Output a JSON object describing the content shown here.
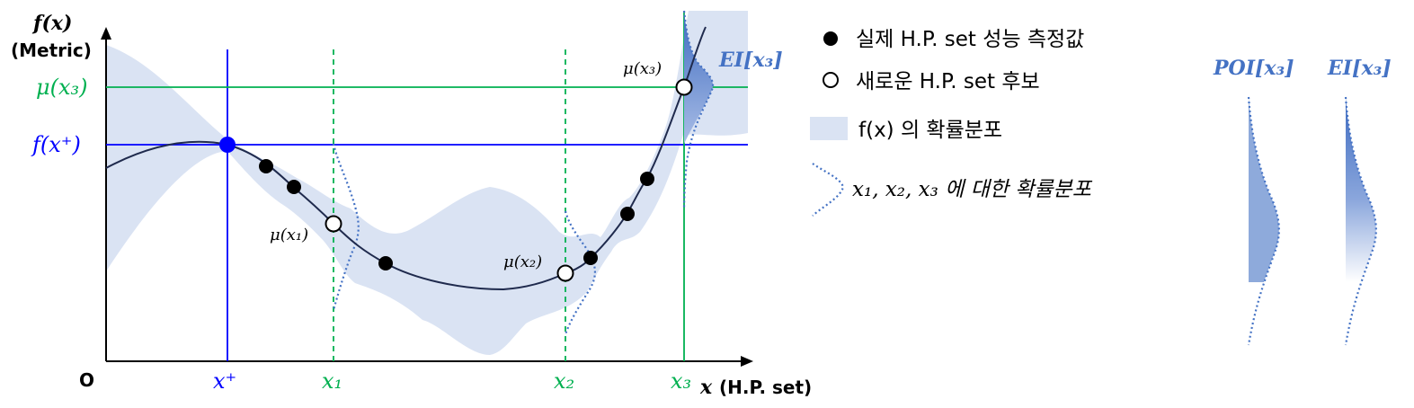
{
  "axes": {
    "y_label": "f(x)",
    "y_sublabel": "(Metric)",
    "origin": "O",
    "x_label": "x",
    "x_unit": "(H.P. set)"
  },
  "ticks": {
    "x_plus": "x⁺",
    "x1": "x₁",
    "x2": "x₂",
    "x3": "x₃",
    "mu_x3": "μ(x₃)",
    "f_x_plus": "f(x⁺)"
  },
  "point_labels": {
    "mu_x1": "μ(x₁)",
    "mu_x2": "μ(x₂)",
    "mu_x3": "μ(x₃)",
    "ei_x3": "EI[x₃]"
  },
  "legend": {
    "observed": "실제 H.P. set 성능 측정값",
    "candidate": "새로운 H.P. set 후보",
    "band": "f(x) 의 확률분포",
    "distributions": "x₁, x₂, x₃ 에 대한 확률분포"
  },
  "side_panels": {
    "poi_label": "POI[x₃]",
    "ei_label": "EI[x₃]"
  },
  "colors": {
    "band": "#dae3f3",
    "curve": "#1f2a4d",
    "blue": "#0000ff",
    "green": "#00b050",
    "dist": "#4472c4",
    "accent_label": "#4472c4"
  }
}
